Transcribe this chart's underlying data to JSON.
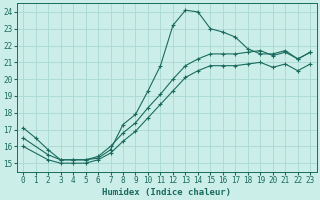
{
  "xlabel": "Humidex (Indice chaleur)",
  "background_color": "#cceee8",
  "grid_color": "#aad8d2",
  "line_color": "#1a6b5e",
  "xlim": [
    -0.5,
    23.5
  ],
  "ylim": [
    14.5,
    24.5
  ],
  "xticks": [
    0,
    1,
    2,
    3,
    4,
    5,
    6,
    7,
    8,
    9,
    10,
    11,
    12,
    13,
    14,
    15,
    16,
    17,
    18,
    19,
    20,
    21,
    22,
    23
  ],
  "yticks": [
    15,
    16,
    17,
    18,
    19,
    20,
    21,
    22,
    23,
    24
  ],
  "series": [
    {
      "x": [
        0,
        1,
        2,
        3,
        4,
        5,
        6,
        7,
        8,
        9,
        10,
        11,
        12,
        13,
        14,
        15,
        16,
        17,
        18,
        19,
        20,
        21,
        22,
        23
      ],
      "y": [
        17.1,
        16.5,
        15.8,
        15.2,
        15.2,
        15.2,
        15.3,
        15.8,
        17.3,
        17.9,
        19.3,
        20.8,
        23.2,
        24.1,
        24.0,
        23.0,
        22.8,
        22.5,
        21.8,
        21.5,
        21.5,
        21.7,
        21.2,
        21.6
      ]
    },
    {
      "x": [
        0,
        2,
        3,
        4,
        5,
        6,
        7,
        8,
        9,
        10,
        11,
        12,
        13,
        14,
        15,
        16,
        17,
        18,
        19,
        20,
        21,
        22,
        23
      ],
      "y": [
        16.5,
        15.5,
        15.2,
        15.2,
        15.2,
        15.4,
        16.0,
        16.8,
        17.4,
        18.3,
        19.1,
        20.0,
        20.8,
        21.2,
        21.5,
        21.5,
        21.5,
        21.6,
        21.7,
        21.4,
        21.6,
        21.2,
        21.6
      ]
    },
    {
      "x": [
        0,
        2,
        3,
        4,
        5,
        6,
        7,
        8,
        9,
        10,
        11,
        12,
        13,
        14,
        15,
        16,
        17,
        18,
        19,
        20,
        21,
        22,
        23
      ],
      "y": [
        16.0,
        15.2,
        15.0,
        15.0,
        15.0,
        15.2,
        15.6,
        16.3,
        16.9,
        17.7,
        18.5,
        19.3,
        20.1,
        20.5,
        20.8,
        20.8,
        20.8,
        20.9,
        21.0,
        20.7,
        20.9,
        20.5,
        20.9
      ]
    }
  ]
}
